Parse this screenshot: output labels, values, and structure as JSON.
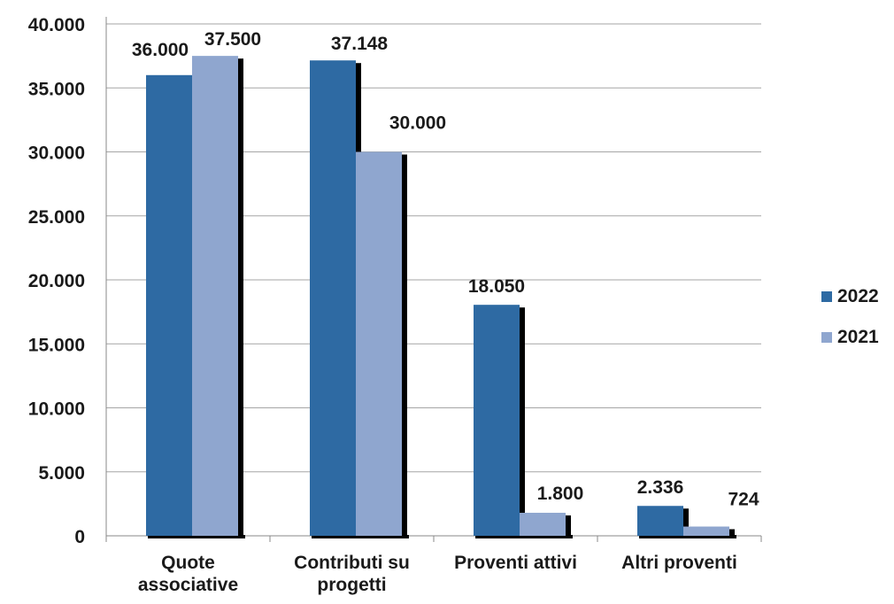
{
  "chart_data": {
    "type": "bar",
    "categories": [
      [
        "Quote",
        "associative"
      ],
      [
        "Contributi su",
        "progetti"
      ],
      [
        "Proventi attivi"
      ],
      [
        "Altri proventi"
      ]
    ],
    "series": [
      {
        "name": "2022",
        "values": [
          36000,
          37148,
          18050,
          2336
        ],
        "labels": [
          "36.000",
          "37.148",
          "18.050",
          "2.336"
        ],
        "color": "#2e6aa3"
      },
      {
        "name": "2021",
        "values": [
          37500,
          30000,
          1800,
          724
        ],
        "labels": [
          "37.500",
          "30.000",
          "1.800",
          "724"
        ],
        "color": "#8fa6cf"
      }
    ],
    "ylim": [
      0,
      40000
    ],
    "yticks": [
      0,
      5000,
      10000,
      15000,
      20000,
      25000,
      30000,
      35000,
      40000
    ],
    "ytick_labels": [
      "0",
      "5.000",
      "10.000",
      "15.000",
      "20.000",
      "25.000",
      "30.000",
      "35.000",
      "40.000"
    ],
    "grid": true,
    "legend_position": "right",
    "title": "",
    "xlabel": "",
    "ylabel": ""
  }
}
